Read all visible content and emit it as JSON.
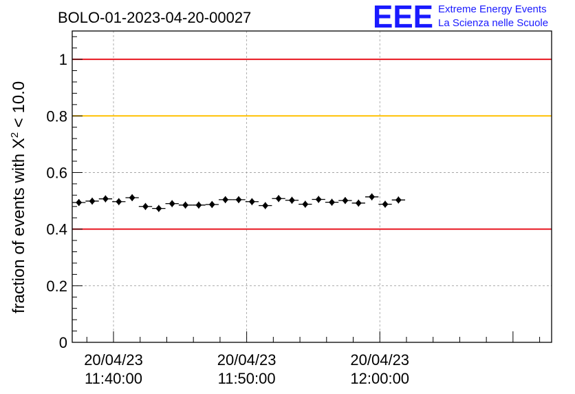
{
  "header": {
    "run_id": "BOLO-01-2023-04-20-00027"
  },
  "logo": {
    "mark": "EEE",
    "line1": "Extreme Energy Events",
    "line2": "La Scienza nelle Scuole",
    "color": "#1a1aff"
  },
  "chart_data": {
    "type": "scatter",
    "title": "BOLO-01-2023-04-20-00027",
    "xlabel": "",
    "ylabel_main": "fraction of events with X",
    "ylabel_sup": "2",
    "ylabel_tail": " < 10.0",
    "ylim": [
      0,
      1.1
    ],
    "xlim_minutes_after_1130": [
      6.9,
      42.9
    ],
    "grid": true,
    "x_ticks": [
      {
        "date": "20/04/23",
        "time": "11:40:00",
        "minute": 10
      },
      {
        "date": "20/04/23",
        "time": "11:50:00",
        "minute": 20
      },
      {
        "date": "20/04/23",
        "time": "12:00:00",
        "minute": 30
      }
    ],
    "y_ticks": [
      "0",
      "0.2",
      "0.4",
      "0.6",
      "0.8",
      "1"
    ],
    "y_tick_values": [
      0,
      0.2,
      0.4,
      0.6,
      0.8,
      1.0
    ],
    "reference_lines": [
      {
        "y": 1.0,
        "color": "#e8141e"
      },
      {
        "y": 0.8,
        "color": "#ffc000"
      },
      {
        "y": 0.4,
        "color": "#e8141e"
      }
    ],
    "series": [
      {
        "x_minutes": [
          7.4,
          8.4,
          9.4,
          10.4,
          11.4,
          12.4,
          13.4,
          14.4,
          15.4,
          16.4,
          17.4,
          18.4,
          19.4,
          20.4,
          21.4,
          22.4,
          23.4,
          24.4,
          25.4,
          26.4,
          27.4,
          28.4,
          29.4,
          30.4,
          31.4
        ],
        "values": [
          0.494,
          0.499,
          0.507,
          0.497,
          0.511,
          0.48,
          0.473,
          0.49,
          0.485,
          0.485,
          0.487,
          0.504,
          0.504,
          0.497,
          0.483,
          0.508,
          0.502,
          0.488,
          0.505,
          0.495,
          0.501,
          0.492,
          0.514,
          0.488,
          0.503
        ]
      }
    ]
  }
}
